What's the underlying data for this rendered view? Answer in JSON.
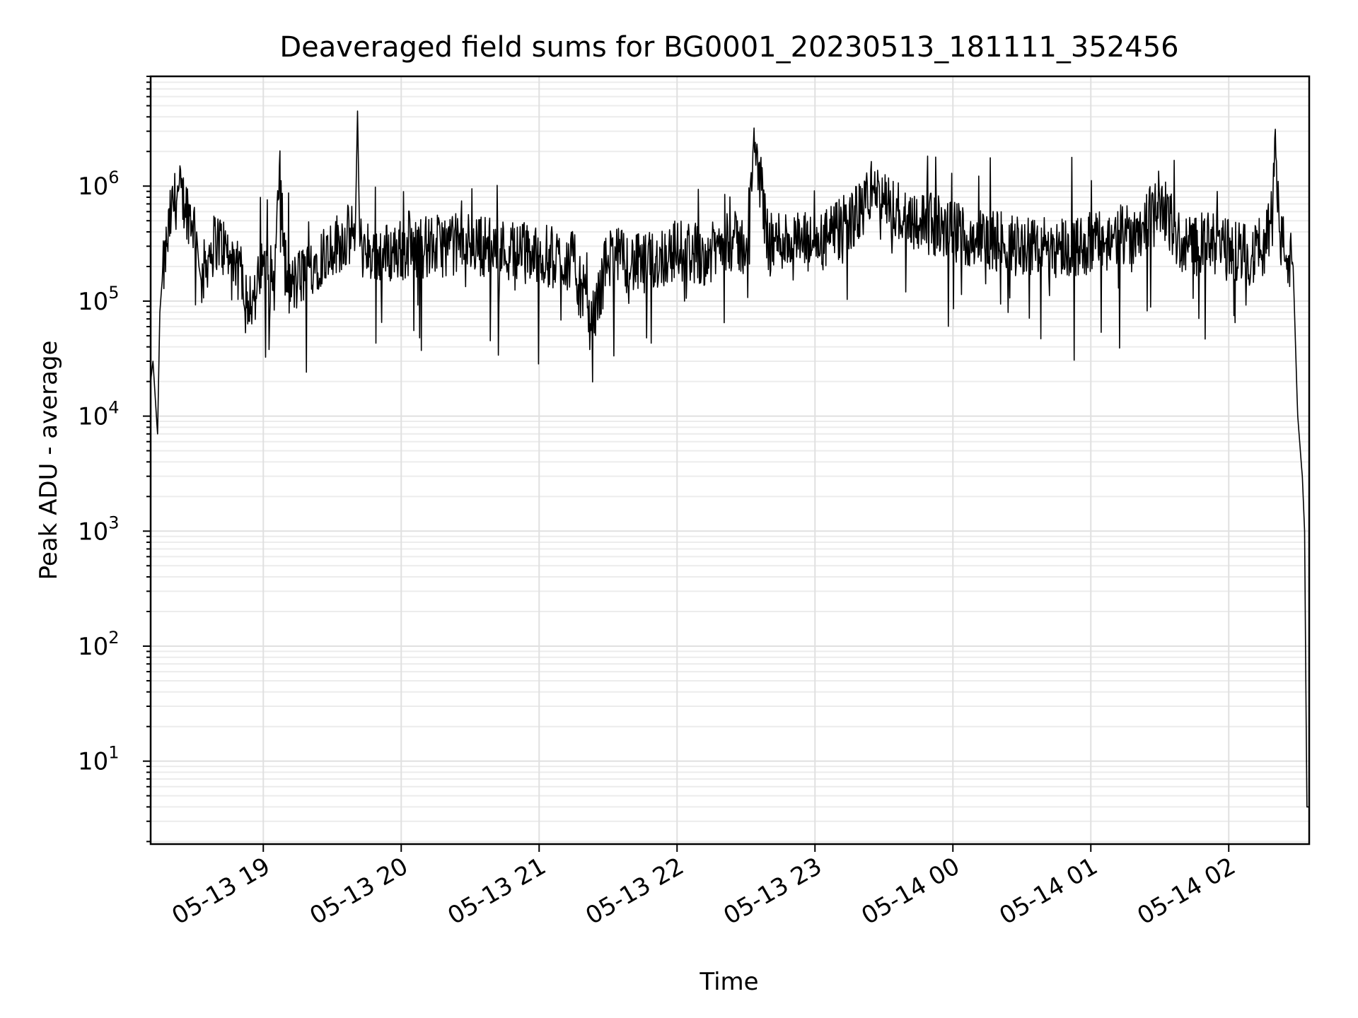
{
  "chart_data": {
    "type": "line",
    "title": "Deaveraged field sums for BG0001_20230513_181111_352456",
    "xlabel": "Time",
    "ylabel": "Peak ADU - average",
    "y_scale": "log",
    "ylim": [
      1.9,
      9000000
    ],
    "xlim": [
      "05-13 18:11",
      "05-14 02:35"
    ],
    "x_ticks": [
      "05-13 19",
      "05-13 20",
      "05-13 21",
      "05-13 22",
      "05-13 23",
      "05-14 00",
      "05-14 01",
      "05-14 02"
    ],
    "y_ticks": [
      10,
      100,
      1000,
      10000,
      100000,
      1000000
    ],
    "y_tick_labels": [
      {
        "base": "10",
        "exp": "1"
      },
      {
        "base": "10",
        "exp": "2"
      },
      {
        "base": "10",
        "exp": "3"
      },
      {
        "base": "10",
        "exp": "4"
      },
      {
        "base": "10",
        "exp": "5"
      },
      {
        "base": "10",
        "exp": "6"
      }
    ],
    "grid": "major and minor",
    "line_color": "#000000",
    "series": [
      {
        "x": [
          "05-13 18:11",
          "05-13 18:12",
          "05-13 18:14",
          "05-13 18:15",
          "05-13 18:16",
          "05-13 18:18",
          "05-13 18:20",
          "05-13 18:23",
          "05-13 18:26",
          "05-13 18:29",
          "05-13 18:31",
          "05-13 18:32",
          "05-13 18:33",
          "05-13 18:36",
          "05-13 18:40",
          "05-13 18:45",
          "05-13 18:47",
          "05-13 18:50",
          "05-13 18:53",
          "05-13 18:56",
          "05-13 19:00",
          "05-13 19:05",
          "05-13 19:07",
          "05-13 19:10",
          "05-13 19:15",
          "05-13 19:20",
          "05-13 19:30",
          "05-13 19:40",
          "05-13 19:41",
          "05-13 19:42",
          "05-13 19:50",
          "05-13 20:00",
          "05-13 20:15",
          "05-13 20:30",
          "05-13 20:45",
          "05-13 21:00",
          "05-13 21:15",
          "05-13 21:23",
          "05-13 21:30",
          "05-13 21:45",
          "05-13 22:00",
          "05-13 22:15",
          "05-13 22:20",
          "05-13 22:30",
          "05-13 22:34",
          "05-13 22:40",
          "05-13 22:45",
          "05-13 23:00",
          "05-13 23:10",
          "05-13 23:20",
          "05-13 23:25",
          "05-13 23:30",
          "05-13 23:40",
          "05-14 00:00",
          "05-14 00:20",
          "05-14 00:40",
          "05-14 00:55",
          "05-14 01:10",
          "05-14 01:20",
          "05-14 01:30",
          "05-14 01:40",
          "05-14 01:50",
          "05-14 02:00",
          "05-14 02:10",
          "05-14 02:15",
          "05-14 02:18",
          "05-14 02:20",
          "05-14 02:22",
          "05-14 02:25",
          "05-14 02:28",
          "05-14 02:30",
          "05-14 02:32",
          "05-14 02:33",
          "05-14 02:34",
          "05-14 02:35"
        ],
        "y": [
          20000,
          30000,
          7000,
          80000,
          150000,
          300000,
          600000,
          900000,
          700000,
          500000,
          400000,
          200000,
          150000,
          250000,
          350000,
          250000,
          150000,
          200000,
          120000,
          100000,
          200000,
          150000,
          1500000,
          120000,
          150000,
          200000,
          300000,
          400000,
          4500000,
          300000,
          250000,
          280000,
          300000,
          320000,
          280000,
          250000,
          220000,
          60000,
          250000,
          200000,
          280000,
          250000,
          350000,
          300000,
          2400000,
          300000,
          350000,
          300000,
          400000,
          600000,
          1000000,
          700000,
          550000,
          400000,
          320000,
          300000,
          300000,
          350000,
          400000,
          750000,
          300000,
          320000,
          280000,
          250000,
          300000,
          500000,
          2600000,
          400000,
          250000,
          200000,
          10000,
          3000,
          1000,
          4,
          4
        ]
      }
    ]
  }
}
